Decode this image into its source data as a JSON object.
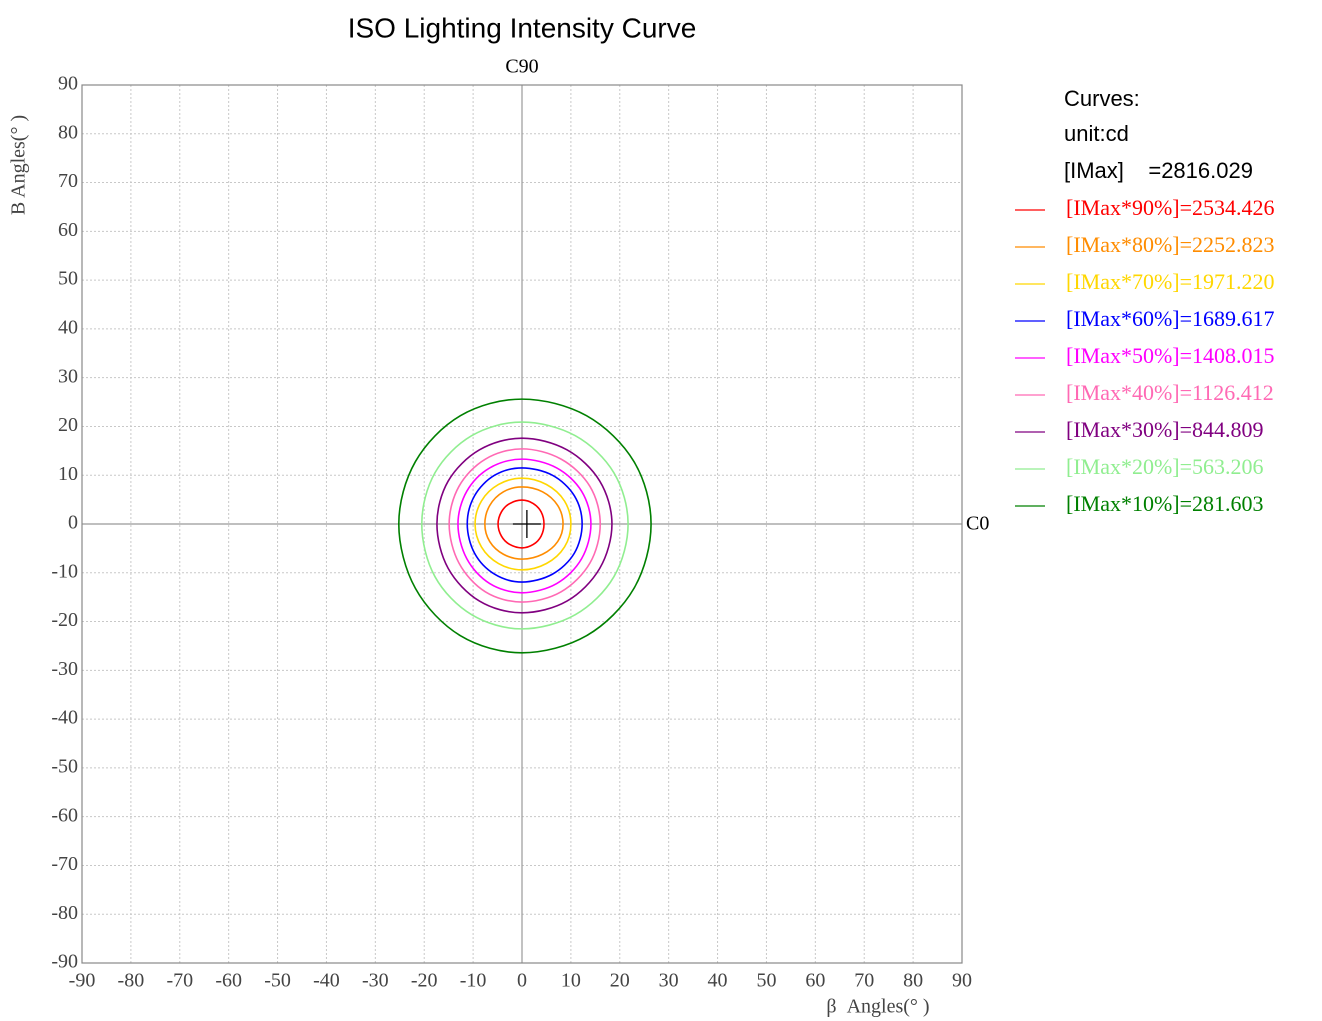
{
  "chart_data": {
    "type": "contour",
    "title": "ISO Lighting Intensity Curve",
    "top_label": "C90",
    "right_label": "C0",
    "x_label": "β  Angles(° )",
    "y_label": "B Angles(° )",
    "legend_title": "Curves:",
    "unit": "unit:cd",
    "imax_label": "[IMax]    =2816.029",
    "xlim": [
      -90,
      90
    ],
    "ylim": [
      -90,
      90
    ],
    "xticks": [
      -90,
      -80,
      -70,
      -60,
      -50,
      -40,
      -30,
      -20,
      -10,
      0,
      10,
      20,
      30,
      40,
      50,
      60,
      70,
      80,
      90
    ],
    "yticks": [
      -90,
      -80,
      -70,
      -60,
      -50,
      -40,
      -30,
      -20,
      -10,
      0,
      10,
      20,
      30,
      40,
      50,
      60,
      70,
      80,
      90
    ],
    "grid": true,
    "center_mark": {
      "x": 1,
      "y": 0
    },
    "series": [
      {
        "name": "[IMax*90%]=2534.426",
        "color": "#ff0000",
        "x": [
          4.5,
          3.9,
          2.3,
          0,
          -2.5,
          -4.2,
          -4.9,
          -4.2,
          -2.5,
          0,
          2.3,
          3.9
        ],
        "values": [
          0,
          2.5,
          4.2,
          4.9,
          4.2,
          2.5,
          0,
          -2.5,
          -4.2,
          -4.9,
          -4.2,
          -2.5
        ]
      },
      {
        "name": "[IMax*80%]=2252.823",
        "color": "#ff8c00",
        "x": [
          8.4,
          7.3,
          4.2,
          0,
          -3.8,
          -6.6,
          -7.6,
          -6.6,
          -3.8,
          0,
          4.2,
          7.3
        ],
        "values": [
          0,
          3.8,
          6.6,
          7.6,
          6.6,
          3.8,
          0,
          -3.6,
          -6.2,
          -7.2,
          -6.2,
          -3.6
        ]
      },
      {
        "name": "[IMax*70%]=1971.220",
        "color": "#ffd700",
        "x": [
          10,
          8.7,
          5,
          0,
          -4.8,
          -8.3,
          -9.6,
          -8.3,
          -4.8,
          0,
          5,
          8.7
        ],
        "values": [
          0,
          4.7,
          8.1,
          9.4,
          8.1,
          4.7,
          0,
          -4.7,
          -8.1,
          -9.4,
          -8.1,
          -4.7
        ]
      },
      {
        "name": "[IMax*60%]=1689.617",
        "color": "#0000ff",
        "x": [
          12.3,
          10.7,
          6.2,
          0,
          -5.6,
          -9.7,
          -11.2,
          -9.7,
          -5.6,
          0,
          6.2,
          10.7
        ],
        "values": [
          0,
          5.8,
          10,
          11.5,
          10,
          5.8,
          0,
          -6,
          -10.3,
          -11.9,
          -10.3,
          -6
        ]
      },
      {
        "name": "[IMax*50%]=1408.015",
        "color": "#ff00ff",
        "x": [
          14.1,
          12.2,
          7.1,
          0,
          -6.6,
          -11.3,
          -13.1,
          -11.3,
          -6.6,
          0,
          7.1,
          12.2
        ],
        "values": [
          0,
          6.7,
          11.5,
          13.3,
          11.5,
          6.7,
          0,
          -7.1,
          -12.2,
          -14.1,
          -12.2,
          -7.1
        ]
      },
      {
        "name": "[IMax*40%]=1126.412",
        "color": "#ff69b4",
        "x": [
          16,
          13.9,
          8,
          0,
          -7.5,
          -12.9,
          -14.9,
          -12.9,
          -7.5,
          0,
          8,
          13.9
        ],
        "values": [
          0,
          7.7,
          13.3,
          15.4,
          13.3,
          7.7,
          0,
          -8,
          -13.9,
          -16,
          -13.9,
          -8
        ]
      },
      {
        "name": "[IMax*30%]=844.809",
        "color": "#800080",
        "x": [
          18.4,
          15.9,
          9.2,
          0,
          -8.7,
          -15.1,
          -17.4,
          -15.1,
          -8.7,
          0,
          9.2,
          15.9
        ],
        "values": [
          0,
          8.8,
          15.2,
          17.6,
          15.2,
          8.8,
          0,
          -9.1,
          -15.8,
          -18.2,
          -15.8,
          -9.1
        ]
      },
      {
        "name": "[IMax*20%]=563.206",
        "color": "#90ee90",
        "x": [
          21.7,
          18.8,
          10.9,
          0,
          -10.3,
          -17.8,
          -20.5,
          -17.8,
          -10.3,
          0,
          10.9,
          18.8
        ],
        "values": [
          0,
          10.5,
          18.1,
          20.9,
          18.1,
          10.5,
          0,
          -10.8,
          -18.6,
          -21.5,
          -18.6,
          -10.8
        ]
      },
      {
        "name": "[IMax*10%]=281.603",
        "color": "#008000",
        "x": [
          26.4,
          22.9,
          13.2,
          0,
          -12.6,
          -21.8,
          -25.2,
          -21.8,
          -12.6,
          0,
          13.2,
          22.9
        ],
        "values": [
          0,
          12.8,
          22.2,
          25.6,
          22.2,
          12.8,
          0,
          -13.2,
          -22.9,
          -26.4,
          -22.9,
          -13.2
        ]
      }
    ]
  }
}
